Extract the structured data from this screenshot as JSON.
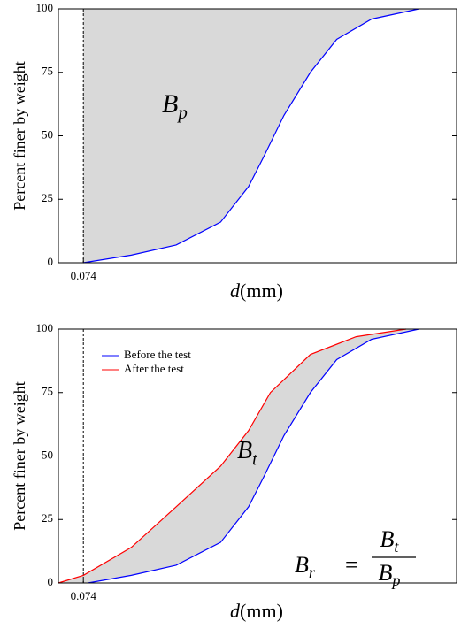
{
  "chart_data": [
    {
      "type": "line",
      "xscale": "log",
      "xlim": [
        0.048,
        48
      ],
      "ylim": [
        0,
        100
      ],
      "xticks": [
        0.074
      ],
      "yticks": [
        0,
        25,
        50,
        75,
        100
      ],
      "x_label": {
        "variable": "d",
        "unit": "(mm)"
      },
      "y_label": "Percent finer by weight",
      "fill_color": "#d9d9d9",
      "annotation": {
        "base": "B",
        "subscript": "p"
      },
      "series": [
        {
          "color": "#0000ff",
          "x": [
            0.074,
            0.17,
            0.37,
            0.8,
            1.3,
            1.7,
            2.4,
            3.8,
            6,
            11,
            25
          ],
          "values": [
            0,
            3,
            7,
            16,
            30,
            42,
            58,
            75,
            88,
            96,
            100
          ]
        }
      ]
    },
    {
      "type": "line",
      "xscale": "log",
      "xlim": [
        0.048,
        48
      ],
      "ylim": [
        0,
        100
      ],
      "xticks": [
        0.074
      ],
      "yticks": [
        0,
        25,
        50,
        75,
        100
      ],
      "x_label": {
        "variable": "d",
        "unit": "(mm)"
      },
      "y_label": "Percent finer by weight",
      "fill_color": "#d9d9d9",
      "legend": "upper left",
      "annotation": {
        "base": "B",
        "subscript": "t"
      },
      "formula": {
        "lhs": {
          "base": "B",
          "subscript": "r"
        },
        "equals": "=",
        "numerator": {
          "base": "B",
          "subscript": "t"
        },
        "denominator": {
          "base": "B",
          "subscript": "p"
        }
      },
      "series": [
        {
          "name": "Before the test",
          "color": "#0000ff",
          "x": [
            0.08,
            0.17,
            0.37,
            0.8,
            1.3,
            1.7,
            2.4,
            3.8,
            6,
            11,
            25
          ],
          "values": [
            0,
            3,
            7,
            16,
            30,
            42,
            58,
            75,
            88,
            96,
            100
          ]
        },
        {
          "name": "After the test",
          "color": "#ff0000",
          "x": [
            0.048,
            0.074,
            0.17,
            0.37,
            0.8,
            1.3,
            1.9,
            3.8,
            8.4,
            20
          ],
          "values": [
            0,
            3,
            14,
            30,
            46,
            60,
            75,
            90,
            97,
            100
          ]
        }
      ]
    }
  ]
}
